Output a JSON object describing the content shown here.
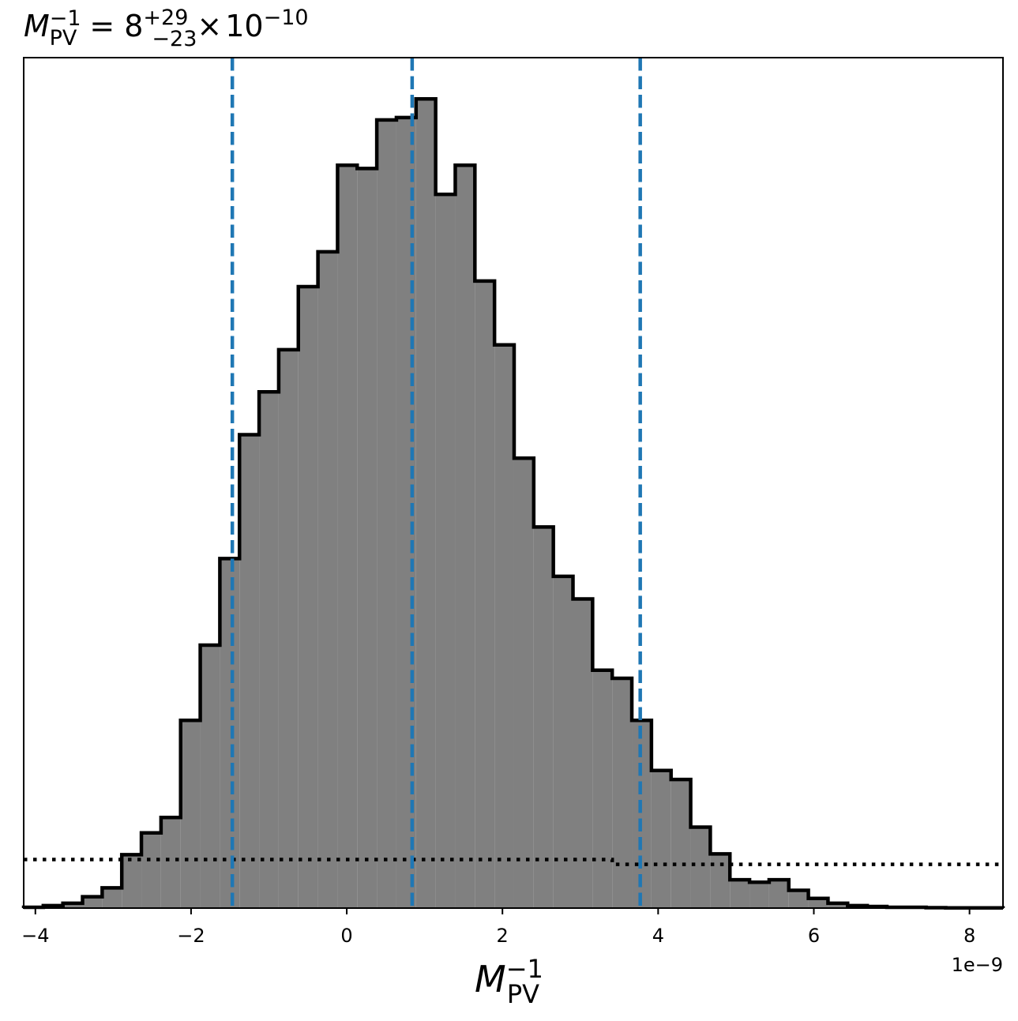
{
  "chart_data": {
    "type": "histogram",
    "title": {
      "symbol": "M",
      "subscript": "PV",
      "superscript": "−1",
      "equals": "=",
      "value": "8",
      "upper_err": "+29",
      "lower_err": "−23",
      "times": "×",
      "base": "10",
      "exponent": "−10"
    },
    "xlabel": {
      "symbol": "M",
      "subscript": "PV",
      "superscript": "−1"
    },
    "offset_text": "1e−9",
    "xlim": [
      -4.15,
      8.43
    ],
    "ylim": [
      0,
      1.051
    ],
    "x_ticks": [
      -4,
      -2,
      0,
      2,
      4,
      6,
      8
    ],
    "x_tick_labels": [
      "−4",
      "−2",
      "0",
      "2",
      "4",
      "6",
      "8"
    ],
    "x_scale_note": "values in units of 1e-9",
    "bin_edges": [
      -4.15,
      -3.898,
      -3.646,
      -3.394,
      -3.142,
      -2.89,
      -2.638,
      -2.386,
      -2.134,
      -1.882,
      -1.63,
      -1.378,
      -1.126,
      -0.874,
      -0.622,
      -0.37,
      -0.118,
      0.134,
      0.386,
      0.638,
      0.89,
      1.142,
      1.394,
      1.646,
      1.898,
      2.15,
      2.402,
      2.654,
      2.906,
      3.158,
      3.41,
      3.662,
      3.914,
      4.166,
      4.418,
      4.67,
      4.922,
      5.174,
      5.426,
      5.678,
      5.93,
      6.182,
      6.434,
      6.686,
      6.938,
      7.19,
      7.442,
      7.694,
      7.946,
      8.198,
      8.43
    ],
    "counts": [
      0.001,
      0.003,
      0.006,
      0.014,
      0.025,
      0.066,
      0.093,
      0.112,
      0.232,
      0.325,
      0.432,
      0.585,
      0.638,
      0.69,
      0.768,
      0.811,
      0.918,
      0.914,
      0.974,
      0.977,
      1.0,
      0.882,
      0.918,
      0.775,
      0.696,
      0.556,
      0.471,
      0.41,
      0.382,
      0.294,
      0.284,
      0.232,
      0.17,
      0.159,
      0.1,
      0.067,
      0.035,
      0.032,
      0.035,
      0.022,
      0.012,
      0.006,
      0.003,
      0.002,
      0.001,
      0.001,
      0.0005,
      0.0003,
      0.0002,
      0.0002
    ],
    "fill_color": "#808080",
    "edge_color": "#000000",
    "quantile_lines": {
      "color": "#1f77b4",
      "style": "dashed",
      "x": [
        -1.47,
        0.84,
        3.77
      ]
    },
    "prior_line": {
      "color": "#000000",
      "style": "dotted",
      "segments": [
        {
          "x": [
            -4.15,
            3.41
          ],
          "y": 0.06
        },
        {
          "x": [
            3.41,
            8.43
          ],
          "y": 0.054
        }
      ]
    }
  }
}
